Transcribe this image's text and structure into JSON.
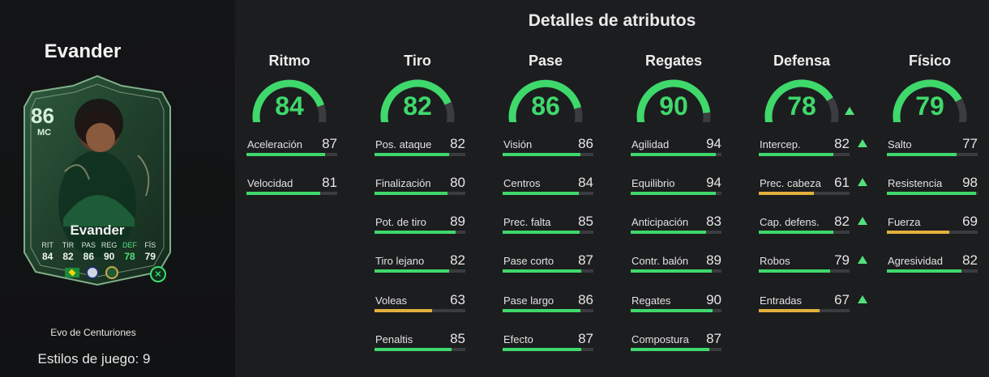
{
  "player": {
    "name": "Evander",
    "rating": "86",
    "position": "MC",
    "card_name": "Evander",
    "card_stats": [
      {
        "label": "RIT",
        "value": "84"
      },
      {
        "label": "TIR",
        "value": "82"
      },
      {
        "label": "PAS",
        "value": "86"
      },
      {
        "label": "REG",
        "value": "90"
      },
      {
        "label": "DEF",
        "value": "78",
        "highlight": true
      },
      {
        "label": "FÍS",
        "value": "79"
      }
    ],
    "evo_label": "Evo de Centuriones",
    "styles_label": "Estilos de juego: 9"
  },
  "title": "Detalles de atributos",
  "colors": {
    "high": "#3fd86b",
    "mid": "#e2b13c",
    "gauge_bg": "#3b3c3f"
  },
  "categories": [
    {
      "name": "Ritmo",
      "value": 84,
      "up": false,
      "stats": [
        {
          "name": "Aceleración",
          "value": 87,
          "up": false
        },
        {
          "name": "Velocidad",
          "value": 81,
          "up": false
        }
      ]
    },
    {
      "name": "Tiro",
      "value": 82,
      "up": false,
      "stats": [
        {
          "name": "Pos. ataque",
          "value": 82,
          "up": false
        },
        {
          "name": "Finalización",
          "value": 80,
          "up": false
        },
        {
          "name": "Pot. de tiro",
          "value": 89,
          "up": false
        },
        {
          "name": "Tiro lejano",
          "value": 82,
          "up": false
        },
        {
          "name": "Voleas",
          "value": 63,
          "up": false
        },
        {
          "name": "Penaltis",
          "value": 85,
          "up": false
        }
      ]
    },
    {
      "name": "Pase",
      "value": 86,
      "up": false,
      "stats": [
        {
          "name": "Visión",
          "value": 86,
          "up": false
        },
        {
          "name": "Centros",
          "value": 84,
          "up": false
        },
        {
          "name": "Prec. falta",
          "value": 85,
          "up": false
        },
        {
          "name": "Pase corto",
          "value": 87,
          "up": false
        },
        {
          "name": "Pase largo",
          "value": 86,
          "up": false
        },
        {
          "name": "Efecto",
          "value": 87,
          "up": false
        }
      ]
    },
    {
      "name": "Regates",
      "value": 90,
      "up": false,
      "stats": [
        {
          "name": "Agilidad",
          "value": 94,
          "up": false
        },
        {
          "name": "Equilibrio",
          "value": 94,
          "up": false
        },
        {
          "name": "Anticipación",
          "value": 83,
          "up": false
        },
        {
          "name": "Contr. balón",
          "value": 89,
          "up": false
        },
        {
          "name": "Regates",
          "value": 90,
          "up": false
        },
        {
          "name": "Compostura",
          "value": 87,
          "up": false
        }
      ]
    },
    {
      "name": "Defensa",
      "value": 78,
      "up": true,
      "stats": [
        {
          "name": "Intercep.",
          "value": 82,
          "up": true
        },
        {
          "name": "Prec. cabeza",
          "value": 61,
          "up": true
        },
        {
          "name": "Cap. defens.",
          "value": 82,
          "up": true
        },
        {
          "name": "Robos",
          "value": 79,
          "up": true
        },
        {
          "name": "Entradas",
          "value": 67,
          "up": true
        }
      ]
    },
    {
      "name": "Físico",
      "value": 79,
      "up": false,
      "stats": [
        {
          "name": "Salto",
          "value": 77,
          "up": false
        },
        {
          "name": "Resistencia",
          "value": 98,
          "up": false
        },
        {
          "name": "Fuerza",
          "value": 69,
          "up": false
        },
        {
          "name": "Agresividad",
          "value": 82,
          "up": false
        }
      ]
    }
  ]
}
